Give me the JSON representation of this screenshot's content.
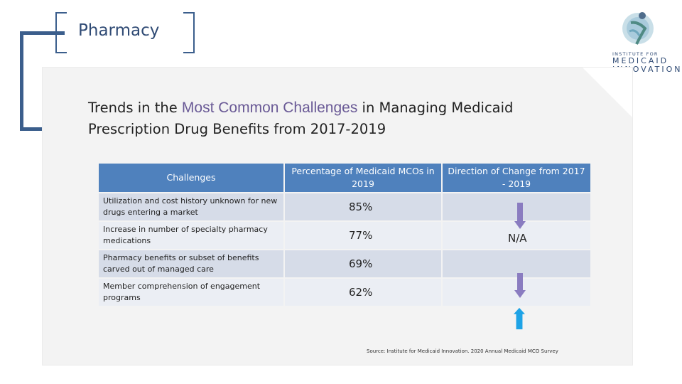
{
  "header": {
    "title": "Pharmacy"
  },
  "logo": {
    "line1": "INSTITUTE FOR",
    "line2": "MEDICAID",
    "line3": "INNOVATION"
  },
  "heading": {
    "prefix": "Trends in the ",
    "accent": "Most Common Challenges",
    "suffix_line1": " in Managing Medicaid",
    "line2": "Prescription Drug Benefits from 2017-2019"
  },
  "table": {
    "headers": [
      "Challenges",
      "Percentage of Medicaid MCOs in 2019",
      "Direction of Change from 2017 - 2019"
    ],
    "rows": [
      {
        "challenge": "Utilization and cost history unknown for new drugs entering a market",
        "pct": "85%",
        "direction": "down"
      },
      {
        "challenge": "Increase in number of specialty pharmacy medications",
        "pct": "77%",
        "direction": "N/A"
      },
      {
        "challenge": "Pharmacy benefits or subset of benefits carved out of managed care",
        "pct": "69%",
        "direction": "down"
      },
      {
        "challenge": "Member comprehension of engagement programs",
        "pct": "62%",
        "direction": "up"
      }
    ]
  },
  "colors": {
    "header_bg": "#4f81bd",
    "down_arrow": "#8a7cc0",
    "up_arrow": "#1ea3e6",
    "accent_text": "#6a5a96"
  },
  "source": "Source: Institute for Medicaid Innovation. 2020 Annual Medicaid MCO Survey"
}
